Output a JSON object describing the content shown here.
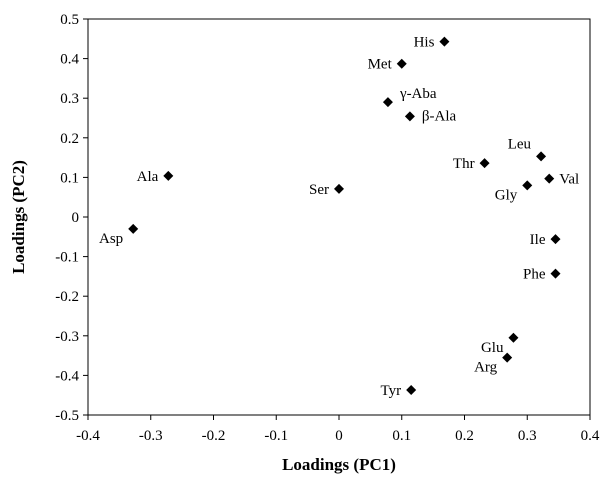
{
  "chart_data": {
    "type": "scatter",
    "title": "",
    "xlabel": "Loadings (PC1)",
    "ylabel": "Loadings (PC2)",
    "xlim": [
      -0.4,
      0.4
    ],
    "ylim": [
      -0.5,
      0.5
    ],
    "xticks": [
      -0.4,
      -0.3,
      -0.2,
      -0.1,
      0,
      0.1,
      0.2,
      0.3,
      0.4
    ],
    "xtick_labels": [
      "-0.4",
      "-0.3",
      "-0.2",
      "-0.1",
      "0",
      "0.1",
      "0.2",
      "0.3",
      "0.4"
    ],
    "yticks": [
      0.5,
      0.4,
      0.3,
      0.2,
      0.1,
      0,
      -0.1,
      -0.2,
      -0.3,
      -0.4,
      -0.5
    ],
    "ytick_labels": [
      "0.5",
      "0.4",
      "0.3",
      "0.2",
      "0.1",
      "0",
      "-0.1",
      "-0.2",
      "-0.3",
      "-0.4",
      "-0.5"
    ],
    "grid": false,
    "marker": "diamond",
    "marker_color": "#000000",
    "points": [
      {
        "label": "His",
        "x": 0.168,
        "y": 0.443,
        "pos": "left"
      },
      {
        "label": "Met",
        "x": 0.1,
        "y": 0.387,
        "pos": "left"
      },
      {
        "label": "γ-Aba",
        "x": 0.078,
        "y": 0.29,
        "pos": "right-up"
      },
      {
        "label": "β-Ala",
        "x": 0.113,
        "y": 0.254,
        "pos": "right-down"
      },
      {
        "label": "Leu",
        "x": 0.322,
        "y": 0.153,
        "pos": "left-up"
      },
      {
        "label": "Thr",
        "x": 0.232,
        "y": 0.136,
        "pos": "left"
      },
      {
        "label": "Val",
        "x": 0.335,
        "y": 0.097,
        "pos": "right"
      },
      {
        "label": "Gly",
        "x": 0.3,
        "y": 0.08,
        "pos": "left-down"
      },
      {
        "label": "Ala",
        "x": -0.272,
        "y": 0.104,
        "pos": "left"
      },
      {
        "label": "Ser",
        "x": 0.0,
        "y": 0.071,
        "pos": "left"
      },
      {
        "label": "Asp",
        "x": -0.328,
        "y": -0.03,
        "pos": "left-down"
      },
      {
        "label": "Ile",
        "x": 0.345,
        "y": -0.056,
        "pos": "left"
      },
      {
        "label": "Phe",
        "x": 0.345,
        "y": -0.143,
        "pos": "left"
      },
      {
        "label": "Glu",
        "x": 0.278,
        "y": -0.305,
        "pos": "left-down"
      },
      {
        "label": "Arg",
        "x": 0.268,
        "y": -0.355,
        "pos": "left-down"
      },
      {
        "label": "Tyr",
        "x": 0.115,
        "y": -0.437,
        "pos": "left"
      }
    ]
  }
}
